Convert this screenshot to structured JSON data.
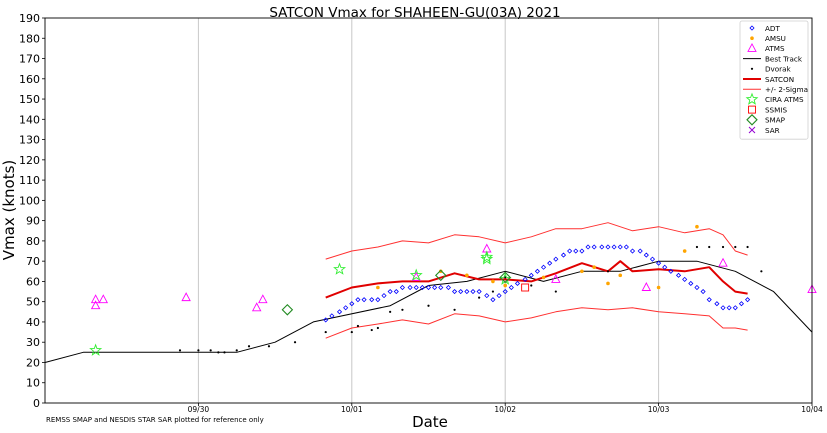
{
  "chart_data": {
    "type": "scatter",
    "title": "SATCON Vmax for SHAHEEN-GU(03A) 2021",
    "xlabel": "Date",
    "ylabel": "Vmax (knots)",
    "ylim": [
      0,
      190
    ],
    "yticks": [
      0,
      10,
      20,
      30,
      40,
      50,
      60,
      70,
      80,
      90,
      100,
      110,
      120,
      130,
      140,
      150,
      160,
      170,
      180,
      190
    ],
    "xlim": [
      0,
      5
    ],
    "xticks": [
      {
        "x": 1,
        "label": "09/30"
      },
      {
        "x": 2,
        "label": "10/01"
      },
      {
        "x": 3,
        "label": "10/02"
      },
      {
        "x": 4,
        "label": "10/03"
      },
      {
        "x": 5,
        "label": "10/04"
      }
    ],
    "grid": true,
    "legend_position": "top-right",
    "footnote": "REMSS SMAP and NESDIS STAR SAR plotted for reference only",
    "legend": [
      {
        "key": "adt",
        "label": "ADT",
        "color": "#0000ff",
        "marker": "diamond"
      },
      {
        "key": "amsu",
        "label": "AMSU",
        "color": "#ffa500",
        "marker": "dot"
      },
      {
        "key": "atms",
        "label": "ATMS",
        "color": "#ff00ff",
        "marker": "triangle"
      },
      {
        "key": "best",
        "label": "Best Track",
        "color": "#000000",
        "marker": "line"
      },
      {
        "key": "dvorak",
        "label": "Dvorak",
        "color": "#000000",
        "marker": "smalldot"
      },
      {
        "key": "satcon",
        "label": "SATCON",
        "color": "#e00000",
        "marker": "thickline"
      },
      {
        "key": "sigma",
        "label": "+/- 2-Sigma",
        "color": "#ff3030",
        "marker": "line"
      },
      {
        "key": "cira",
        "label": "CIRA ATMS",
        "color": "#33ee33",
        "marker": "star"
      },
      {
        "key": "ssmis",
        "label": "SSMIS",
        "color": "#ff0000",
        "marker": "square"
      },
      {
        "key": "smap",
        "label": "SMAP",
        "color": "#228b22",
        "marker": "bigdiamond"
      },
      {
        "key": "sar",
        "label": "SAR",
        "color": "#9400d3",
        "marker": "x"
      }
    ],
    "series": {
      "best_track": [
        [
          0,
          20
        ],
        [
          0.25,
          25
        ],
        [
          1.25,
          25
        ],
        [
          1.5,
          30
        ],
        [
          1.75,
          40
        ],
        [
          2.25,
          48
        ],
        [
          2.5,
          58
        ],
        [
          2.75,
          60
        ],
        [
          3.0,
          65
        ],
        [
          3.25,
          60
        ],
        [
          3.5,
          65
        ],
        [
          3.75,
          65
        ],
        [
          4.0,
          70
        ],
        [
          4.25,
          70
        ],
        [
          4.5,
          65
        ],
        [
          4.75,
          55
        ],
        [
          5.0,
          35
        ]
      ],
      "satcon": [
        [
          1.83,
          52
        ],
        [
          2.0,
          57
        ],
        [
          2.17,
          59
        ],
        [
          2.33,
          60
        ],
        [
          2.5,
          60
        ],
        [
          2.67,
          64
        ],
        [
          2.83,
          61
        ],
        [
          3.0,
          61
        ],
        [
          3.17,
          60
        ],
        [
          3.33,
          64
        ],
        [
          3.5,
          69
        ],
        [
          3.67,
          65
        ],
        [
          3.75,
          70
        ],
        [
          3.83,
          65
        ],
        [
          4.0,
          66
        ],
        [
          4.17,
          65
        ],
        [
          4.33,
          67
        ],
        [
          4.42,
          60
        ],
        [
          4.5,
          55
        ],
        [
          4.58,
          54
        ]
      ],
      "sigma_upper": [
        [
          1.83,
          71
        ],
        [
          2.0,
          75
        ],
        [
          2.17,
          77
        ],
        [
          2.33,
          80
        ],
        [
          2.5,
          79
        ],
        [
          2.67,
          83
        ],
        [
          2.83,
          82
        ],
        [
          3.0,
          79
        ],
        [
          3.17,
          82
        ],
        [
          3.33,
          86
        ],
        [
          3.5,
          86
        ],
        [
          3.67,
          89
        ],
        [
          3.83,
          85
        ],
        [
          4.0,
          87
        ],
        [
          4.17,
          84
        ],
        [
          4.33,
          86
        ],
        [
          4.42,
          83
        ],
        [
          4.5,
          75
        ],
        [
          4.58,
          73
        ]
      ],
      "sigma_lower": [
        [
          1.83,
          32
        ],
        [
          2.0,
          37
        ],
        [
          2.17,
          39
        ],
        [
          2.33,
          41
        ],
        [
          2.5,
          39
        ],
        [
          2.67,
          44
        ],
        [
          2.83,
          43
        ],
        [
          3.0,
          40
        ],
        [
          3.17,
          42
        ],
        [
          3.33,
          45
        ],
        [
          3.5,
          47
        ],
        [
          3.67,
          46
        ],
        [
          3.83,
          47
        ],
        [
          4.0,
          45
        ],
        [
          4.17,
          44
        ],
        [
          4.33,
          43
        ],
        [
          4.42,
          37
        ],
        [
          4.5,
          37
        ],
        [
          4.58,
          36
        ]
      ],
      "adt": [
        [
          1.83,
          41
        ],
        [
          1.87,
          43
        ],
        [
          1.92,
          45
        ],
        [
          1.96,
          47
        ],
        [
          2.0,
          49
        ],
        [
          2.04,
          51
        ],
        [
          2.08,
          51
        ],
        [
          2.13,
          51
        ],
        [
          2.17,
          51
        ],
        [
          2.21,
          53
        ],
        [
          2.25,
          55
        ],
        [
          2.29,
          55
        ],
        [
          2.33,
          57
        ],
        [
          2.38,
          57
        ],
        [
          2.42,
          57
        ],
        [
          2.46,
          57
        ],
        [
          2.5,
          57
        ],
        [
          2.54,
          57
        ],
        [
          2.58,
          57
        ],
        [
          2.63,
          57
        ],
        [
          2.67,
          55
        ],
        [
          2.71,
          55
        ],
        [
          2.75,
          55
        ],
        [
          2.79,
          55
        ],
        [
          2.83,
          55
        ],
        [
          2.88,
          53
        ],
        [
          2.92,
          51
        ],
        [
          2.96,
          53
        ],
        [
          3.0,
          55
        ],
        [
          3.04,
          57
        ],
        [
          3.08,
          59
        ],
        [
          3.13,
          61
        ],
        [
          3.17,
          63
        ],
        [
          3.21,
          65
        ],
        [
          3.25,
          67
        ],
        [
          3.29,
          69
        ],
        [
          3.33,
          71
        ],
        [
          3.38,
          73
        ],
        [
          3.42,
          75
        ],
        [
          3.46,
          75
        ],
        [
          3.5,
          75
        ],
        [
          3.54,
          77
        ],
        [
          3.58,
          77
        ],
        [
          3.63,
          77
        ],
        [
          3.67,
          77
        ],
        [
          3.71,
          77
        ],
        [
          3.75,
          77
        ],
        [
          3.79,
          77
        ],
        [
          3.83,
          75
        ],
        [
          3.88,
          75
        ],
        [
          3.92,
          73
        ],
        [
          3.96,
          71
        ],
        [
          4.0,
          69
        ],
        [
          4.04,
          67
        ],
        [
          4.08,
          65
        ],
        [
          4.13,
          63
        ],
        [
          4.17,
          61
        ],
        [
          4.21,
          59
        ],
        [
          4.25,
          57
        ],
        [
          4.29,
          55
        ],
        [
          4.33,
          51
        ],
        [
          4.38,
          49
        ],
        [
          4.42,
          47
        ],
        [
          4.46,
          47
        ],
        [
          4.5,
          47
        ],
        [
          4.54,
          49
        ],
        [
          4.58,
          51
        ]
      ],
      "amsu": [
        [
          2.17,
          57
        ],
        [
          2.58,
          65
        ],
        [
          2.75,
          63
        ],
        [
          2.92,
          60
        ],
        [
          3.0,
          58
        ],
        [
          3.25,
          62
        ],
        [
          3.5,
          65
        ],
        [
          3.58,
          67
        ],
        [
          3.67,
          59
        ],
        [
          3.75,
          63
        ],
        [
          4.0,
          57
        ],
        [
          4.17,
          75
        ],
        [
          4.25,
          87
        ]
      ],
      "dvorak": [
        [
          0.88,
          26
        ],
        [
          1.0,
          26
        ],
        [
          1.08,
          26
        ],
        [
          1.13,
          25
        ],
        [
          1.17,
          25
        ],
        [
          1.25,
          26
        ],
        [
          1.33,
          28
        ],
        [
          1.46,
          28
        ],
        [
          1.63,
          30
        ],
        [
          1.83,
          35
        ],
        [
          2.0,
          35
        ],
        [
          2.04,
          38
        ],
        [
          2.13,
          36
        ],
        [
          2.17,
          37
        ],
        [
          2.25,
          45
        ],
        [
          2.33,
          46
        ],
        [
          2.5,
          48
        ],
        [
          2.67,
          46
        ],
        [
          2.83,
          52
        ],
        [
          2.92,
          55
        ],
        [
          3.0,
          62
        ],
        [
          3.17,
          58
        ],
        [
          3.33,
          55
        ],
        [
          3.5,
          65
        ],
        [
          3.67,
          65
        ],
        [
          4.0,
          57
        ],
        [
          4.25,
          77
        ],
        [
          4.33,
          77
        ],
        [
          4.42,
          77
        ],
        [
          4.5,
          77
        ],
        [
          4.58,
          77
        ],
        [
          4.67,
          65
        ]
      ],
      "atms": [
        [
          0.33,
          48
        ],
        [
          0.33,
          51
        ],
        [
          0.38,
          51
        ],
        [
          0.92,
          52
        ],
        [
          1.38,
          47
        ],
        [
          1.42,
          51
        ],
        [
          2.42,
          62
        ],
        [
          2.88,
          76
        ],
        [
          3.33,
          61
        ],
        [
          3.92,
          57
        ],
        [
          4.42,
          69
        ],
        [
          5.0,
          56
        ]
      ],
      "cira": [
        [
          0.33,
          26
        ],
        [
          1.92,
          66
        ],
        [
          2.42,
          63
        ],
        [
          2.88,
          71
        ],
        [
          2.88,
          72
        ],
        [
          3.0,
          61
        ]
      ],
      "ssmis": [
        [
          3.13,
          57
        ]
      ],
      "smap": [
        [
          1.58,
          46
        ],
        [
          2.58,
          63
        ],
        [
          3.0,
          62
        ]
      ],
      "sar": []
    }
  }
}
